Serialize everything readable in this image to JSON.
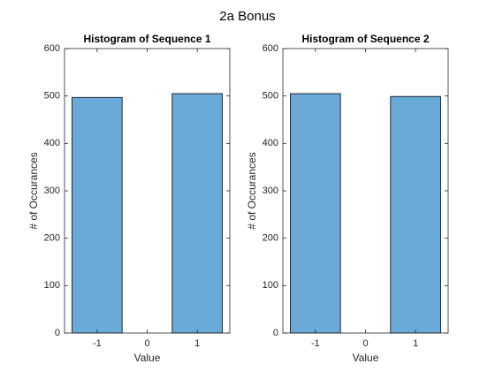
{
  "title": "2a Bonus",
  "chart_data": [
    {
      "type": "histogram",
      "title": "Histogram of Sequence 1",
      "xlabel": "Value",
      "ylabel": "# of Occurances",
      "bins": [
        -1.5,
        -0.5,
        0.5,
        1.5
      ],
      "values": [
        497,
        0,
        505
      ],
      "color": "#6aaad9",
      "xlim": [
        -1.65,
        1.65
      ],
      "xticks": [
        -1,
        0,
        1
      ],
      "ylim": [
        0,
        600
      ],
      "yticks": [
        0,
        100,
        200,
        300,
        400,
        500,
        600
      ]
    },
    {
      "type": "histogram",
      "title": "Histogram of Sequence 2",
      "xlabel": "Value",
      "ylabel": "# of Occurances",
      "bins": [
        -1.5,
        -0.5,
        0.5,
        1.5
      ],
      "values": [
        505,
        0,
        499
      ],
      "color": "#6aaad9",
      "xlim": [
        -1.65,
        1.65
      ],
      "xticks": [
        -1,
        0,
        1
      ],
      "ylim": [
        0,
        600
      ],
      "yticks": [
        0,
        100,
        200,
        300,
        400,
        500,
        600
      ]
    }
  ]
}
